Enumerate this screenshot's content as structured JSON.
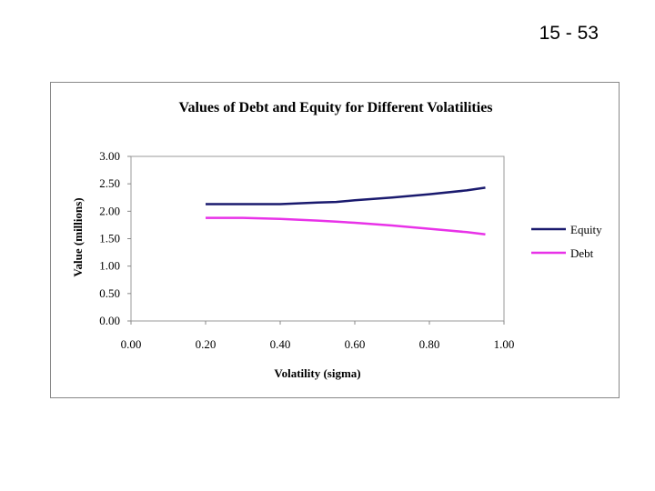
{
  "slide": {
    "number": "15 - 53"
  },
  "chart_data": {
    "type": "line",
    "title": "Values of Debt and Equity for Different Volatilities",
    "xlabel": "Volatility (sigma)",
    "ylabel": "Value (millions)",
    "xlim": [
      0,
      1
    ],
    "ylim": [
      0,
      3
    ],
    "x_ticks": [
      "0.00",
      "0.20",
      "0.40",
      "0.60",
      "0.80",
      "1.00"
    ],
    "y_ticks": [
      "0.00",
      "0.50",
      "1.00",
      "1.50",
      "2.00",
      "2.50",
      "3.00"
    ],
    "grid": false,
    "legend_position": "right",
    "x": [
      0.2,
      0.3,
      0.4,
      0.5,
      0.55,
      0.6,
      0.7,
      0.8,
      0.9,
      0.95
    ],
    "series": [
      {
        "name": "Equity",
        "color": "#1a1a6e",
        "values": [
          2.13,
          2.13,
          2.13,
          2.16,
          2.17,
          2.2,
          2.25,
          2.31,
          2.38,
          2.43
        ]
      },
      {
        "name": "Debt",
        "color": "#e832e8",
        "values": [
          1.88,
          1.88,
          1.86,
          1.83,
          1.81,
          1.79,
          1.74,
          1.68,
          1.62,
          1.58
        ]
      }
    ]
  }
}
